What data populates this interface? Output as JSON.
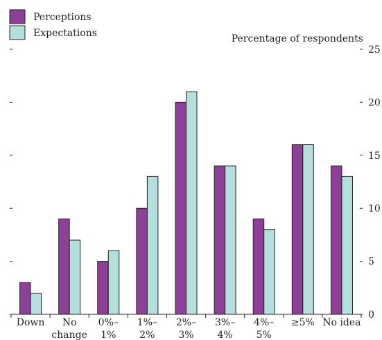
{
  "chart_data": {
    "type": "bar",
    "categories": [
      [
        "Down"
      ],
      [
        "No",
        "change"
      ],
      [
        "0%–",
        "1%"
      ],
      [
        "1%–",
        "2%"
      ],
      [
        "2%–",
        "3%"
      ],
      [
        "3%–",
        "4%"
      ],
      [
        "4%–",
        "5%"
      ],
      [
        "≥5%"
      ],
      [
        "No idea"
      ]
    ],
    "series": [
      {
        "name": "Perceptions",
        "color": "#8e3f97",
        "values": [
          3,
          9,
          5,
          10,
          20,
          14,
          9,
          16,
          14
        ]
      },
      {
        "name": "Expectations",
        "color": "#b3e0dd",
        "values": [
          2,
          7,
          6,
          13,
          21,
          14,
          8,
          16,
          13
        ]
      }
    ],
    "ylabel": "Percentage of respondents",
    "ylim": [
      0,
      25
    ],
    "yticks": [
      0,
      5,
      10,
      15,
      20,
      25
    ],
    "yaxis_side": "right",
    "legend_position": "top-left",
    "grid": false
  }
}
